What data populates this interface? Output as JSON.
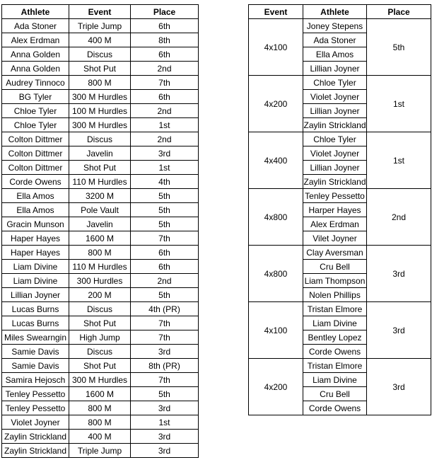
{
  "left_table": {
    "header": [
      "Athlete",
      "Event",
      "Place"
    ],
    "rows": [
      [
        "Ada Stoner",
        "Triple Jump",
        "6th"
      ],
      [
        "Alex Erdman",
        "400 M",
        "8th"
      ],
      [
        "Anna Golden",
        "Discus",
        "6th"
      ],
      [
        "Anna Golden",
        "Shot Put",
        "2nd"
      ],
      [
        "Audrey Tinnoco",
        "800 M",
        "7th"
      ],
      [
        "BG Tyler",
        "300 M Hurdles",
        "6th"
      ],
      [
        "Chloe Tyler",
        "100 M Hurdles",
        "2nd"
      ],
      [
        "Chloe Tyler",
        "300 M Hurdles",
        "1st"
      ],
      [
        "Colton Dittmer",
        "Discus",
        "2nd"
      ],
      [
        "Colton Dittmer",
        "Javelin",
        "3rd"
      ],
      [
        "Colton Dittmer",
        "Shot Put",
        "1st"
      ],
      [
        "Corde Owens",
        "110 M Hurdles",
        "4th"
      ],
      [
        "Ella Amos",
        "3200 M",
        "5th"
      ],
      [
        "Ella Amos",
        "Pole Vault",
        "5th"
      ],
      [
        "Gracin Munson",
        "Javelin",
        "5th"
      ],
      [
        "Haper Hayes",
        "1600 M",
        "7th"
      ],
      [
        "Haper Hayes",
        "800 M",
        "6th"
      ],
      [
        "Liam Divine",
        "110 M Hurdles",
        "6th"
      ],
      [
        "Liam Divine",
        "300 Hurdles",
        "2nd"
      ],
      [
        "Lillian Joyner",
        "200 M",
        "5th"
      ],
      [
        "Lucas Burns",
        "Discus",
        "4th (PR)"
      ],
      [
        "Lucas Burns",
        "Shot Put",
        "7th"
      ],
      [
        "Miles Swearngin",
        "High Jump",
        "7th"
      ],
      [
        "Samie Davis",
        "Discus",
        "3rd"
      ],
      [
        "Samie Davis",
        "Shot Put",
        "8th (PR)"
      ],
      [
        "Samira Hejosch",
        "300 M Hurdles",
        "7th"
      ],
      [
        "Tenley Pessetto",
        "1600 M",
        "5th"
      ],
      [
        "Tenley Pessetto",
        "800 M",
        "3rd"
      ],
      [
        "Violet Joyner",
        "800 M",
        "1st"
      ],
      [
        "Zaylin Strickland",
        "400 M",
        "3rd"
      ],
      [
        "Zaylin Strickland",
        "Triple Jump",
        "3rd"
      ]
    ]
  },
  "right_table": {
    "header": [
      "Event",
      "Athlete",
      "Place"
    ],
    "groups": [
      {
        "event": "4x100",
        "athletes": [
          "Joney Stepens",
          "Ada Stoner",
          "Ella Amos",
          "Lillian Joyner"
        ],
        "place": "5th"
      },
      {
        "event": "4x200",
        "athletes": [
          "Chloe Tyler",
          "Violet Joyner",
          "Lillian Joyner",
          "Zaylin Strickland"
        ],
        "place": "1st"
      },
      {
        "event": "4x400",
        "athletes": [
          "Chloe Tyler",
          "Violet Joyner",
          "Lillian Joyner",
          "Zaylin Strickland"
        ],
        "place": "1st"
      },
      {
        "event": "4x800",
        "athletes": [
          "Tenley Pessetto",
          "Harper Hayes",
          "Alex Erdman",
          "Vilet Joyner"
        ],
        "place": "2nd"
      },
      {
        "event": "4x800",
        "athletes": [
          "Clay Aversman",
          "Cru Bell",
          "Liam Thompson",
          "Nolen Phillips"
        ],
        "place": "3rd"
      },
      {
        "event": "4x100",
        "athletes": [
          "Tristan Elmore",
          "Liam Divine",
          "Bentley Lopez",
          "Corde Owens"
        ],
        "place": "3rd"
      },
      {
        "event": "4x200",
        "athletes": [
          "Tristan Elmore",
          "Liam Divine",
          "Cru Bell",
          "Corde Owens"
        ],
        "place": "3rd"
      }
    ]
  }
}
